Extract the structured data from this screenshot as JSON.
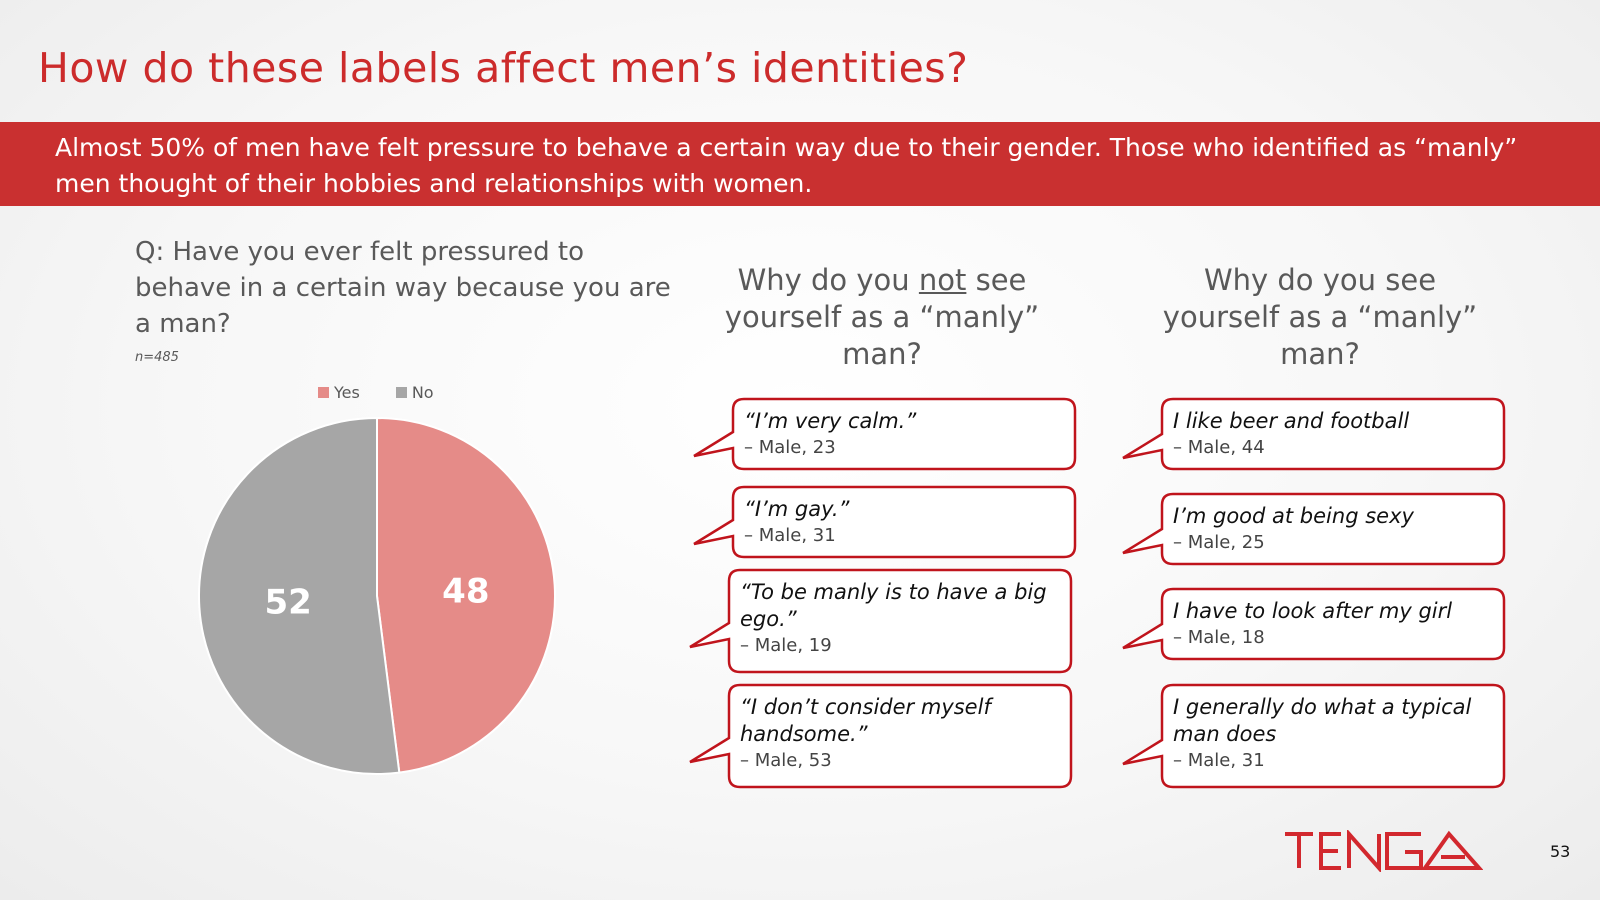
{
  "slide": {
    "title": "How do these labels affect men’s identities?",
    "banner": "Almost 50% of men have felt pressure to behave a certain way due to their gender. Those who identified as “manly” men thought of their hobbies and relationships with women.",
    "page_number": "53",
    "logo_text": "TENGA"
  },
  "question": {
    "text": "Q: Have you ever felt pressured to behave in a certain way because you are a man?",
    "n": "n=485"
  },
  "chart_data": {
    "type": "pie",
    "categories": [
      "Yes",
      "No"
    ],
    "values": [
      48,
      52
    ],
    "colors": [
      "#e58b88",
      "#a6a6a6"
    ],
    "data_labels": [
      "48",
      "52"
    ],
    "legend_position": "top",
    "start_angle": "12 o'clock, clockwise"
  },
  "columns": {
    "not_manly": {
      "heading_pre": "Why do you ",
      "heading_emph": "not",
      "heading_post": " see yourself as a “manly” man?",
      "quotes": [
        {
          "text": "“I’m very calm.”",
          "attribution": "– Male, 23"
        },
        {
          "text": "“I’m gay.”",
          "attribution": "– Male, 31"
        },
        {
          "text": "“To be manly is to have a big ego.”",
          "attribution": "– Male, 19"
        },
        {
          "text": "“I don’t consider myself handsome.”",
          "attribution": "– Male, 53"
        }
      ]
    },
    "manly": {
      "heading": "Why do you see yourself as a “manly” man?",
      "quotes": [
        {
          "text": "I like beer and football",
          "attribution": "– Male, 44"
        },
        {
          "text": "I’m good at being sexy",
          "attribution": "– Male, 25"
        },
        {
          "text": "I have to look after my girl",
          "attribution": "– Male, 18"
        },
        {
          "text": "I generally do what a typical man does",
          "attribution": "– Male, 31"
        }
      ]
    }
  },
  "colors": {
    "brand_red": "#cc2b2b",
    "banner_red": "#c93030",
    "bubble_border": "#c0141c"
  }
}
